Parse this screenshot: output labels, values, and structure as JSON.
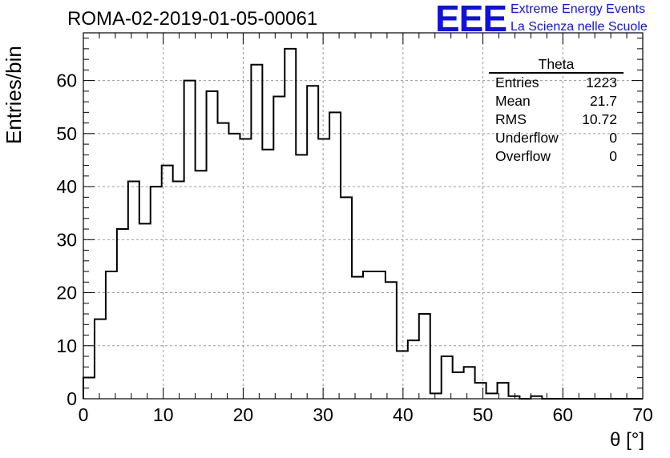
{
  "chart_data": {
    "type": "histogram",
    "title": "ROMA-02-2019-01-05-00061",
    "xlabel": "θ [°]",
    "ylabel": "Entries/bin",
    "xlim": [
      0,
      70
    ],
    "ylim": [
      0,
      69
    ],
    "x_ticks": [
      "0",
      "10",
      "20",
      "30",
      "40",
      "50",
      "60",
      "70"
    ],
    "y_ticks": [
      "0",
      "10",
      "20",
      "30",
      "40",
      "50",
      "60"
    ],
    "bin_width": 1.4,
    "bin_edges_start": 0,
    "values": [
      4,
      15,
      24,
      32,
      41,
      33,
      40,
      44,
      41,
      60,
      43,
      58,
      52,
      50,
      49,
      63,
      47,
      57,
      66,
      46,
      59,
      49,
      54,
      38,
      23,
      24,
      24,
      22,
      9,
      11,
      16,
      1,
      8,
      5,
      6,
      3,
      1,
      3,
      0.5,
      0,
      0.5,
      0,
      0,
      0,
      0,
      0,
      0,
      0,
      0,
      0
    ],
    "grid": true,
    "legend_position": "top-right"
  },
  "stats_box": {
    "name": "Theta",
    "rows": [
      {
        "label": "Entries",
        "value": "1223"
      },
      {
        "label": "Mean",
        "value": "21.7"
      },
      {
        "label": "RMS",
        "value": "10.72"
      },
      {
        "label": "Underflow",
        "value": "0"
      },
      {
        "label": "Overflow",
        "value": "0"
      }
    ]
  },
  "logo": {
    "text": "EEE",
    "line1": "Extreme Energy Events",
    "line2": "La Scienza nelle Scuole",
    "color": "#1010e0"
  }
}
